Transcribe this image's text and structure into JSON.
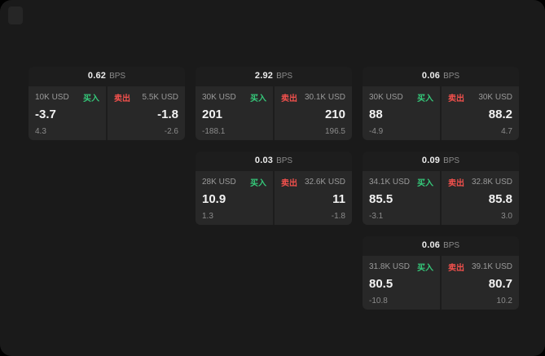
{
  "app": {
    "background": "#1a1a1a",
    "buy_color": "#35c97a",
    "sell_color": "#f1504c"
  },
  "cards": [
    {
      "col": 1,
      "row": 1,
      "bps": "0.62",
      "bps_unit": "BPS",
      "buy": {
        "amount": "10K USD",
        "label": "买入",
        "value": "-3.7",
        "sub": "4.3"
      },
      "sell": {
        "amount": "5.5K USD",
        "label": "卖出",
        "value": "-1.8",
        "sub": "-2.6"
      }
    },
    {
      "col": 2,
      "row": 1,
      "bps": "2.92",
      "bps_unit": "BPS",
      "buy": {
        "amount": "30K USD",
        "label": "买入",
        "value": "201",
        "sub": "-188.1"
      },
      "sell": {
        "amount": "30.1K USD",
        "label": "卖出",
        "value": "210",
        "sub": "196.5"
      }
    },
    {
      "col": 3,
      "row": 1,
      "bps": "0.06",
      "bps_unit": "BPS",
      "buy": {
        "amount": "30K USD",
        "label": "买入",
        "value": "88",
        "sub": "-4.9"
      },
      "sell": {
        "amount": "30K USD",
        "label": "卖出",
        "value": "88.2",
        "sub": "4.7"
      }
    },
    {
      "col": 2,
      "row": 2,
      "bps": "0.03",
      "bps_unit": "BPS",
      "buy": {
        "amount": "28K USD",
        "label": "买入",
        "value": "10.9",
        "sub": "1.3"
      },
      "sell": {
        "amount": "32.6K USD",
        "label": "卖出",
        "value": "11",
        "sub": "-1.8"
      }
    },
    {
      "col": 3,
      "row": 2,
      "bps": "0.09",
      "bps_unit": "BPS",
      "buy": {
        "amount": "34.1K USD",
        "label": "买入",
        "value": "85.5",
        "sub": "-3.1"
      },
      "sell": {
        "amount": "32.8K USD",
        "label": "卖出",
        "value": "85.8",
        "sub": "3.0"
      }
    },
    {
      "col": 3,
      "row": 3,
      "bps": "0.06",
      "bps_unit": "BPS",
      "buy": {
        "amount": "31.8K USD",
        "label": "买入",
        "value": "80.5",
        "sub": "-10.8"
      },
      "sell": {
        "amount": "39.1K USD",
        "label": "卖出",
        "value": "80.7",
        "sub": "10.2"
      }
    }
  ]
}
